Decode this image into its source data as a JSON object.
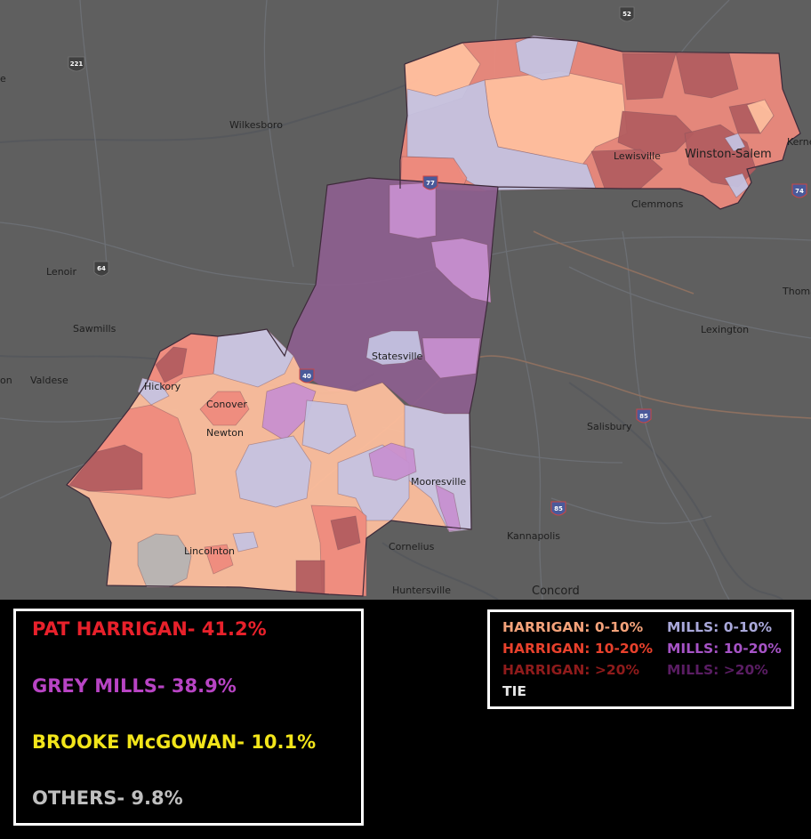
{
  "map": {
    "places": [
      {
        "name": "Wilkesboro"
      },
      {
        "name": "Lenoir"
      },
      {
        "name": "Sawmills"
      },
      {
        "name": "Valdese"
      },
      {
        "name": "Hickory"
      },
      {
        "name": "Conover"
      },
      {
        "name": "Newton"
      },
      {
        "name": "Lincolnton"
      },
      {
        "name": "Statesville"
      },
      {
        "name": "Mooresville"
      },
      {
        "name": "Cornelius"
      },
      {
        "name": "Huntersville"
      },
      {
        "name": "Kannapolis"
      },
      {
        "name": "Concord"
      },
      {
        "name": "Salisbury"
      },
      {
        "name": "Lexington"
      },
      {
        "name": "Thoma"
      },
      {
        "name": "Lewisville"
      },
      {
        "name": "Winston-Salem"
      },
      {
        "name": "Clemmons"
      },
      {
        "name": "Kerne"
      },
      {
        "name": "e"
      },
      {
        "name": "on"
      }
    ],
    "shields": [
      "221",
      "52",
      "64",
      "40",
      "77",
      "85",
      "85",
      "74"
    ]
  },
  "results": [
    {
      "label": "PAT HARRIGAN- 41.2%",
      "color": "#e8212b"
    },
    {
      "label": "GREY MILLS- 38.9%",
      "color": "#b844c4"
    },
    {
      "label": "BROOKE McGOWAN- 10.1%",
      "color": "#f2e51a"
    },
    {
      "label": "OTHERS- 9.8%",
      "color": "#bfbfbf"
    }
  ],
  "legend": [
    {
      "label": "HARRIGAN: 0-10%",
      "color": "#f4a27a"
    },
    {
      "label": "MILLS: 0-10%",
      "color": "#a9a8da"
    },
    {
      "label": "HARRIGAN: 10-20%",
      "color": "#e8412c"
    },
    {
      "label": "MILLS: 10-20%",
      "color": "#a653c6"
    },
    {
      "label": "HARRIGAN: >20%",
      "color": "#8f1b1b"
    },
    {
      "label": "MILLS: >20%",
      "color": "#5a1d63"
    },
    {
      "label": "TIE",
      "color": "#e6e6e6"
    }
  ],
  "colors": {
    "harrigan_0_10": "#ffbf9e",
    "harrigan_10_20": "#ee8a7d",
    "harrigan_gt20": "#b15b5f",
    "mills_0_10": "#c4c3e2",
    "mills_10_20": "#c78fd0",
    "mills_gt20": "#8c5f8e",
    "tie": "#b4b4b4"
  }
}
